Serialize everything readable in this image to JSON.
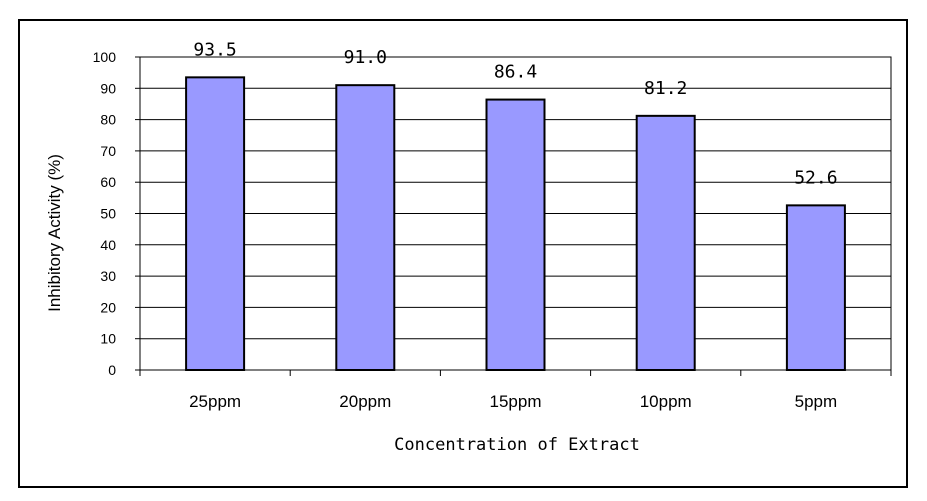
{
  "chart_data": {
    "type": "bar",
    "categories": [
      "25ppm",
      "20ppm",
      "15ppm",
      "10ppm",
      "5ppm"
    ],
    "values": [
      93.5,
      91.0,
      86.4,
      81.2,
      52.6
    ],
    "data_labels": [
      "93.5",
      "91.0",
      "86.4",
      "81.2",
      "52.6"
    ],
    "title": "",
    "xlabel": "Concentration of Extract",
    "ylabel": "Inhibitory Activity (%)",
    "ylim": [
      0,
      100
    ],
    "yticks": [
      0,
      10,
      20,
      30,
      40,
      50,
      60,
      70,
      80,
      90,
      100
    ],
    "ytick_labels": [
      "0",
      "10",
      "20",
      "30",
      "40",
      "50",
      "60",
      "70",
      "80",
      "90",
      "100"
    ],
    "grid": true,
    "legend": "none",
    "colors": {
      "bar_fill": "#9999ff",
      "bar_stroke": "#000000",
      "grid": "#000000",
      "border": "#000000",
      "background": "#ffffff"
    }
  }
}
